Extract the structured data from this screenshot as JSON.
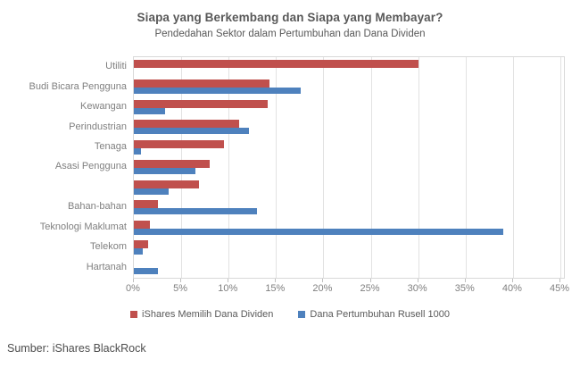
{
  "title": "Siapa yang Berkembang dan Siapa yang Membayar?",
  "subtitle": "Pendedahan Sektor dalam Pertumbuhan dan Dana Dividen",
  "source": "Sumber: iShares BlackRock",
  "colors": {
    "dividend_red": "#c0504d",
    "growth_blue": "#4e81bd",
    "gridline": "#e2e2e2",
    "title_text": "#595959",
    "category_text": "#7f7f7f"
  },
  "legend": [
    {
      "label": "iShares Memilih Dana Dividen",
      "color": "#c0504d"
    },
    {
      "label": "Dana Pertumbuhan Rusell 1000",
      "color": "#4e81bd"
    }
  ],
  "chart_data": {
    "type": "bar",
    "orientation": "horizontal",
    "title": "Siapa yang Berkembang dan Siapa yang Membayar?",
    "subtitle": "Pendedahan Sektor dalam Pertumbuhan dan Dana Dividen",
    "categories": [
      "Utiliti",
      "Budi Bicara Pengguna",
      "Kewangan",
      "Perindustrian",
      "Tenaga",
      "Asasi Pengguna",
      "",
      "Bahan-bahan",
      "Teknologi Maklumat",
      "Telekom",
      "Hartanah"
    ],
    "series": [
      {
        "name": "iShares Memilih Dana Dividen",
        "color": "#c0504d",
        "values": [
          30,
          14.3,
          14.1,
          11.1,
          9.5,
          8.0,
          6.9,
          2.5,
          1.7,
          1.5,
          0
        ]
      },
      {
        "name": "Dana Pertumbuhan Rusell 1000",
        "color": "#4e81bd",
        "values": [
          0,
          17.6,
          3.3,
          12.1,
          0.8,
          6.5,
          3.7,
          13,
          39,
          0.9,
          2.5
        ]
      }
    ],
    "x_ticks": [
      "0%",
      "5%",
      "10%",
      "15%",
      "20%",
      "25%",
      "30%",
      "35%",
      "40%",
      "45%"
    ],
    "x_tick_values": [
      0,
      5,
      10,
      15,
      20,
      25,
      30,
      35,
      40,
      45
    ],
    "xlim": [
      0,
      45
    ],
    "grid": true,
    "legend_position": "bottom"
  }
}
